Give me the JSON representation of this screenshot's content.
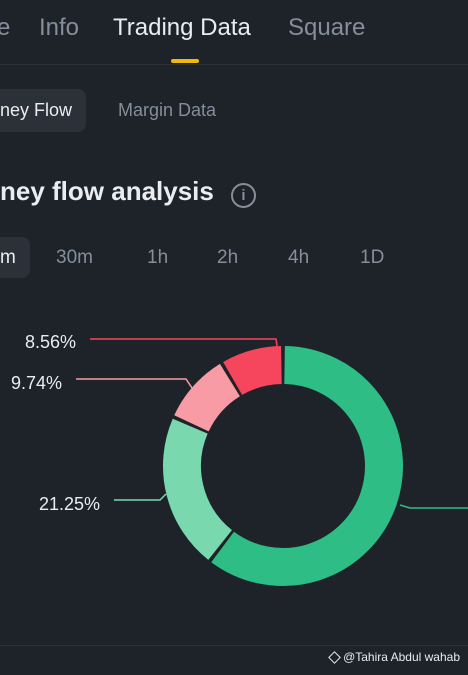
{
  "top_tabs": [
    {
      "label": "e"
    },
    {
      "label": "Info"
    },
    {
      "label": "Trading Data"
    },
    {
      "label": "Square"
    }
  ],
  "sub_tabs": [
    {
      "label": "ney Flow"
    },
    {
      "label": "Margin Data"
    }
  ],
  "section": {
    "title": "ney flow analysis",
    "info_icon": "info-icon"
  },
  "time_tabs": [
    {
      "label": "m"
    },
    {
      "label": "30m"
    },
    {
      "label": "1h"
    },
    {
      "label": "2h"
    },
    {
      "label": "4h"
    },
    {
      "label": "1D"
    }
  ],
  "chart_data": {
    "type": "pie",
    "donut": true,
    "labels": [
      "8.56%",
      "9.74%",
      "21.25%"
    ],
    "slices": [
      {
        "value": 60.45,
        "color": "#2ebd85"
      },
      {
        "value": 21.25,
        "color": "#7ad8af"
      },
      {
        "value": 9.74,
        "color": "#f89ba4"
      },
      {
        "value": 8.56,
        "color": "#f6465d"
      }
    ]
  },
  "colors": {
    "accent": "#f0b90b",
    "bg": "#1e2329"
  },
  "watermark": {
    "text": "@Tahira Abdul wahab"
  }
}
